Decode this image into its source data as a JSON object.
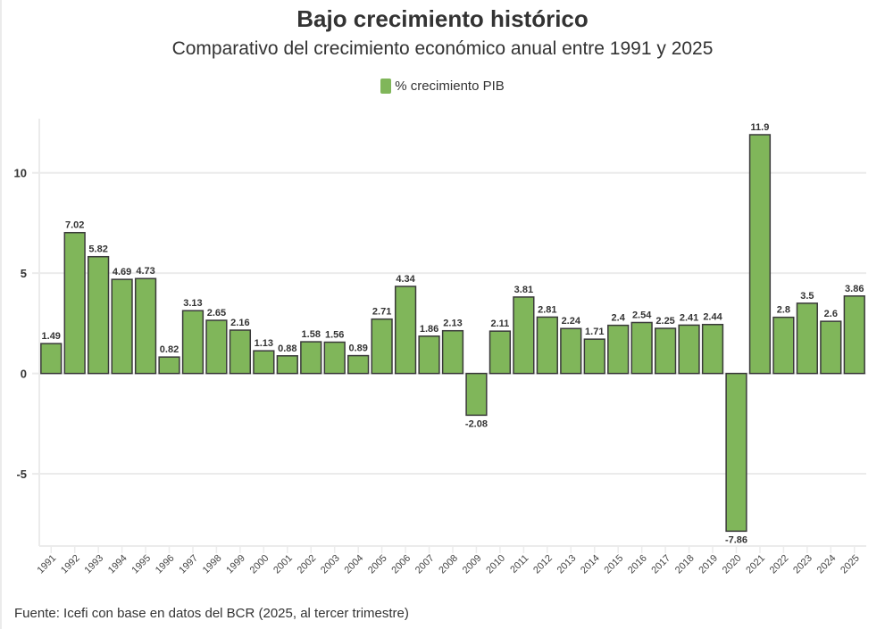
{
  "chart_data": {
    "type": "bar",
    "title": "Bajo crecimiento histórico",
    "subtitle": "Comparativo del crecimiento económico anual entre 1991 y 2025",
    "xlabel": "",
    "ylabel": "",
    "legend": {
      "position": "top-center",
      "entries": [
        "% crecimiento PIB"
      ]
    },
    "ylim": [
      -8.6,
      12.7
    ],
    "yticks": [
      -5,
      0,
      5,
      10
    ],
    "grid": true,
    "color": "#80b65a",
    "categories": [
      "1991",
      "1992",
      "1993",
      "1994",
      "1995",
      "1996",
      "1997",
      "1998",
      "1999",
      "2000",
      "2001",
      "2002",
      "2003",
      "2004",
      "2005",
      "2006",
      "2007",
      "2008",
      "2009",
      "2010",
      "2011",
      "2012",
      "2013",
      "2014",
      "2015",
      "2016",
      "2017",
      "2018",
      "2019",
      "2020",
      "2021",
      "2022",
      "2023",
      "2024",
      "2025"
    ],
    "series": [
      {
        "name": "% crecimiento PIB",
        "values": [
          1.49,
          7.02,
          5.82,
          4.69,
          4.73,
          0.82,
          3.13,
          2.65,
          2.16,
          1.13,
          0.88,
          1.58,
          1.56,
          0.89,
          2.71,
          4.34,
          1.86,
          2.13,
          -2.08,
          2.11,
          3.81,
          2.81,
          2.24,
          1.71,
          2.4,
          2.54,
          2.25,
          2.41,
          2.44,
          -7.86,
          11.9,
          2.8,
          3.5,
          2.6,
          3.86
        ]
      }
    ],
    "source": "Fuente: Icefi con base en datos del BCR (2025, al tercer trimestre)"
  }
}
